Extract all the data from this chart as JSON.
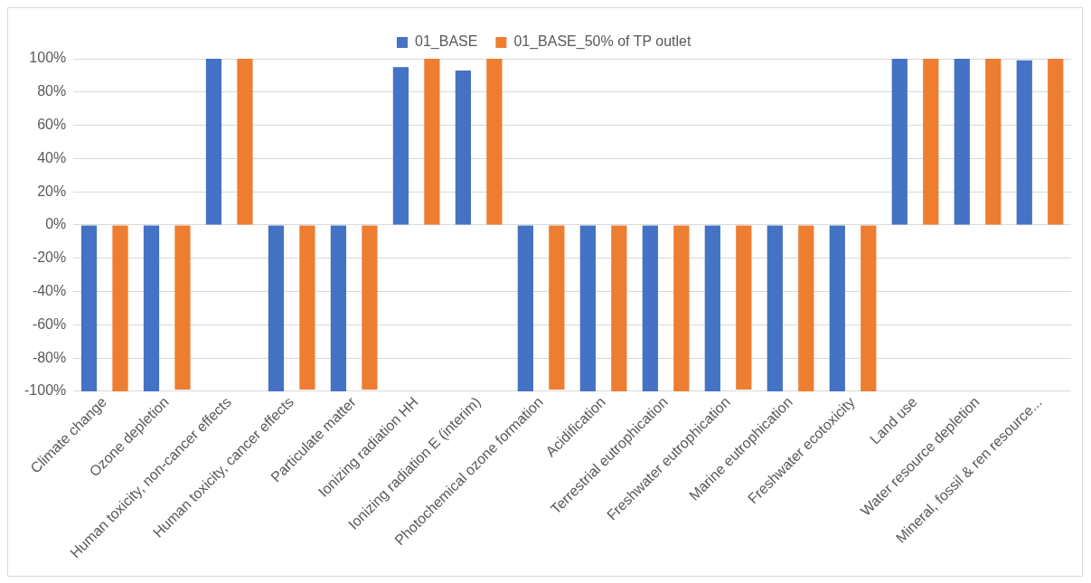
{
  "chart_data": {
    "type": "bar",
    "categories": [
      "Climate change",
      "Ozone depletion",
      "Human toxicity, non-cancer effects",
      "Human toxicity, cancer effects",
      "Particulate matter",
      "Ionizing radiation HH",
      "Ionizing radiation E (interim)",
      "Photochemical ozone formation",
      "Acidification",
      "Terrestrial eutrophication",
      "Freshwater eutrophication",
      "Marine eutrophication",
      "Freshwater ecotoxicity",
      "Land use",
      "Water resource depletion",
      "Mineral, fossil & ren resource..."
    ],
    "series": [
      {
        "name": "01_BASE",
        "color": "#4472c4",
        "values": [
          -100,
          -100,
          100,
          -100,
          -100,
          95,
          93,
          -100,
          -100,
          -100,
          -100,
          -100,
          -100,
          100,
          100,
          99
        ]
      },
      {
        "name": "01_BASE_50% of TP outlet",
        "color": "#ed7d31",
        "values": [
          -100,
          -99,
          100,
          -99,
          -99,
          100,
          100,
          -99,
          -100,
          -100,
          -99,
          -100,
          -100,
          100,
          100,
          100
        ]
      }
    ],
    "ylim": [
      -100,
      100
    ],
    "yticks": [
      {
        "value": -100,
        "label": "-100%"
      },
      {
        "value": -80,
        "label": "-80%"
      },
      {
        "value": -60,
        "label": "-60%"
      },
      {
        "value": -40,
        "label": "-40%"
      },
      {
        "value": -20,
        "label": "-20%"
      },
      {
        "value": 0,
        "label": "0%"
      },
      {
        "value": 20,
        "label": "20%"
      },
      {
        "value": 40,
        "label": "40%"
      },
      {
        "value": 60,
        "label": "60%"
      },
      {
        "value": 80,
        "label": "80%"
      },
      {
        "value": 100,
        "label": "100%"
      }
    ],
    "grid": "y",
    "legend": "top"
  }
}
